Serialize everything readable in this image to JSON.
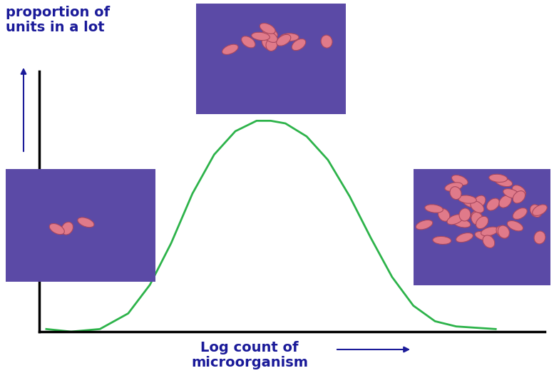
{
  "chart_data": {
    "type": "line",
    "x_label": "Log count of\nmicroorganism",
    "y_label": "proportion of\nunits in a lot",
    "x": [
      0.14,
      0.63,
      1.2,
      1.76,
      2.19,
      2.61,
      3.03,
      3.46,
      3.88,
      4.3,
      4.58,
      4.87,
      5.29,
      5.71,
      6.14,
      6.56,
      6.98,
      7.4,
      7.83,
      8.25,
      9.03
    ],
    "values": [
      0.01,
      0.0,
      0.01,
      0.07,
      0.18,
      0.34,
      0.53,
      0.68,
      0.77,
      0.81,
      0.81,
      0.8,
      0.75,
      0.66,
      0.52,
      0.36,
      0.21,
      0.1,
      0.04,
      0.02,
      0.01
    ],
    "color": "#2db34a",
    "xlim": [
      0,
      10
    ],
    "ylim": [
      0,
      1
    ],
    "tick_labels": false,
    "grid": false
  }
}
